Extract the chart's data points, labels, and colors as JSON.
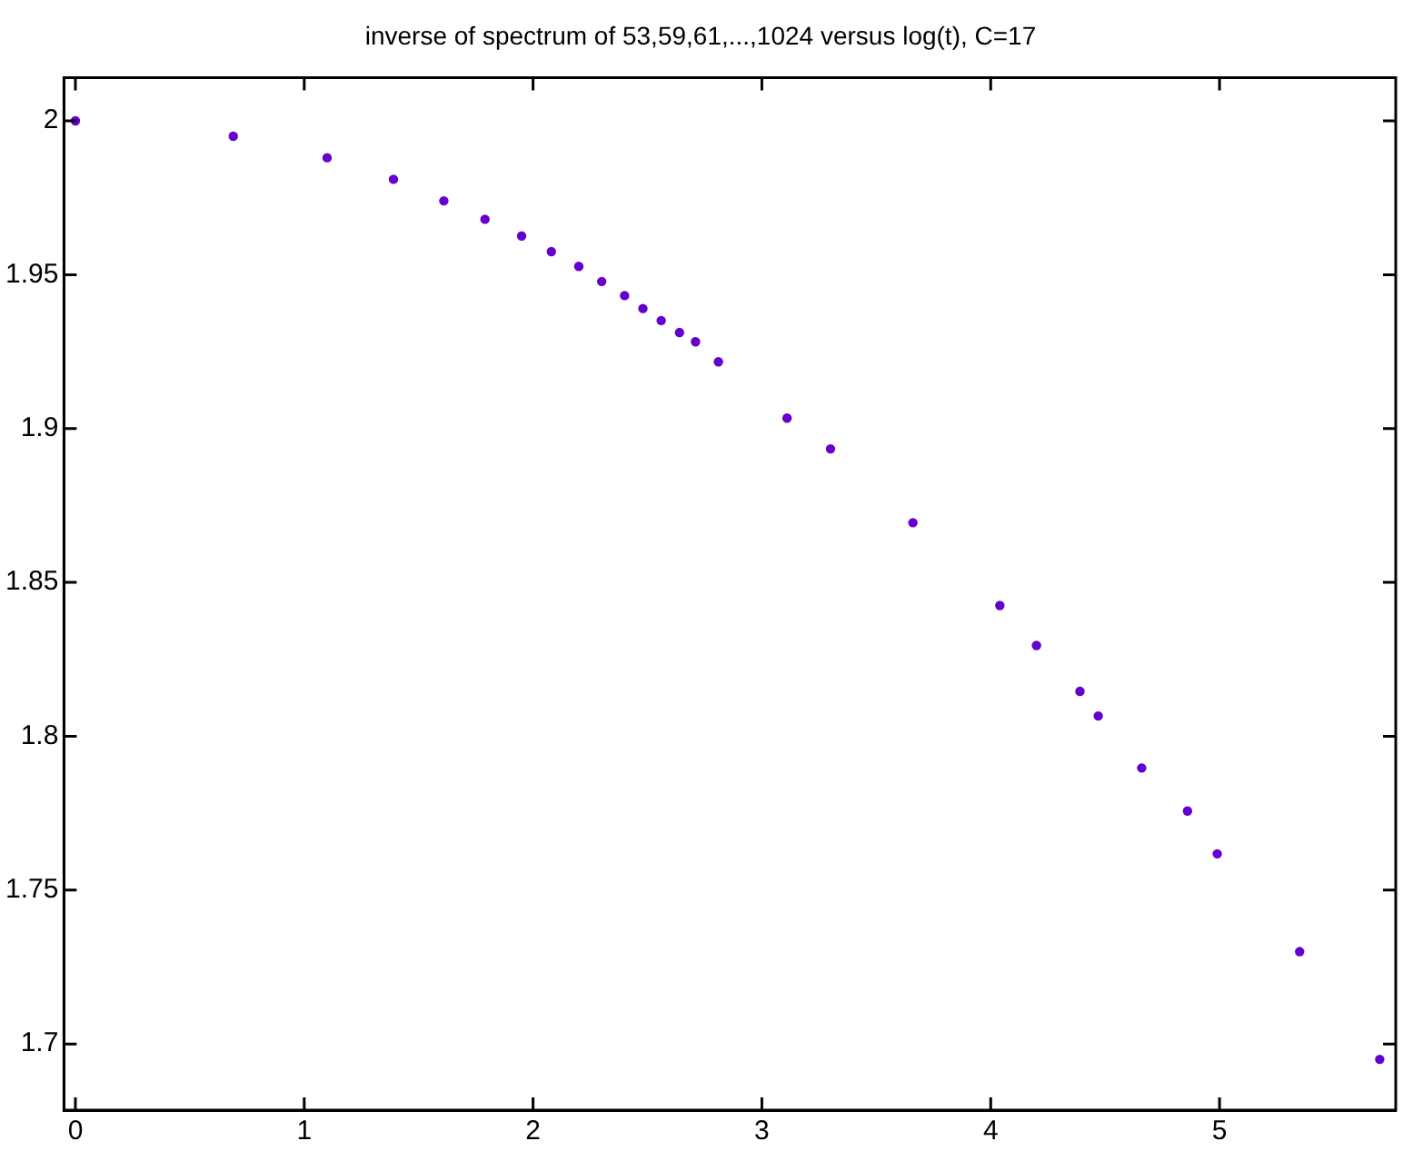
{
  "chart_data": {
    "type": "scatter",
    "title": "inverse of spectrum of 53,59,61,...,1024 versus log(t), C=17",
    "series": [
      {
        "color": "#6600cc",
        "x": [
          0,
          0.69,
          1.1,
          1.39,
          1.61,
          1.79,
          1.95,
          2.08,
          2.2,
          2.3,
          2.4,
          2.48,
          2.56,
          2.64,
          2.71,
          2.81,
          3.11,
          3.3,
          3.66,
          4.04,
          4.2,
          4.39,
          4.47,
          4.66,
          4.86,
          4.99,
          5.35,
          5.7
        ],
        "values": [
          2.0,
          1.995,
          1.988,
          1.981,
          1.974,
          1.968,
          1.9626,
          1.9575,
          1.9527,
          1.9478,
          1.9432,
          1.939,
          1.9351,
          1.9312,
          1.9282,
          1.9217,
          1.9034,
          1.8934,
          1.8694,
          1.8425,
          1.8295,
          1.8146,
          1.8066,
          1.7897,
          1.7757,
          1.7618,
          1.73,
          1.695
        ]
      }
    ],
    "xlim": [
      -0.05,
      5.77
    ],
    "xticks": [
      0,
      1,
      2,
      3,
      4,
      5
    ],
    "ylim": [
      1.6785,
      2.014
    ],
    "yticks": [
      1.7,
      1.75,
      1.8,
      1.85,
      1.9,
      1.95,
      2
    ],
    "grid": false,
    "legend": false,
    "marker": "circle"
  }
}
